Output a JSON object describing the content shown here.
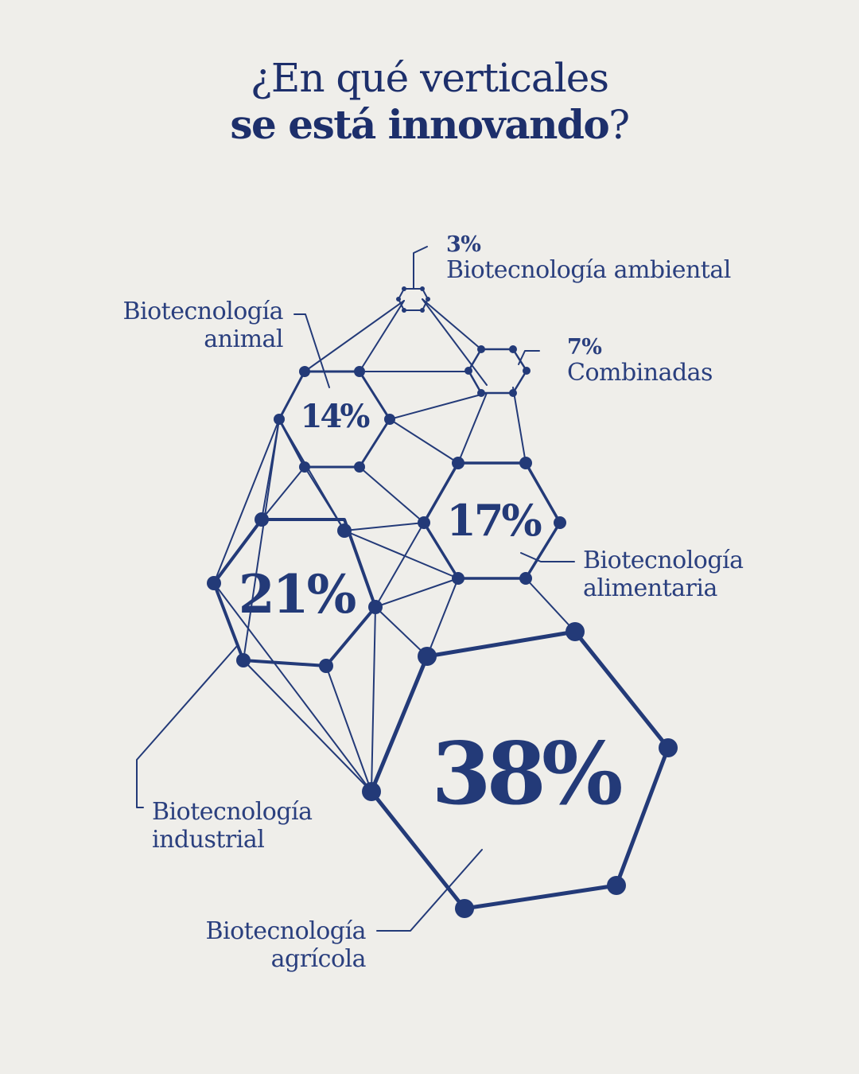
{
  "title": {
    "line1": "¿En qué verticales",
    "line2_bold": "se está innovando",
    "line2_rest": "?"
  },
  "segments": [
    {
      "id": "ambiental",
      "percent": "3%",
      "label1": "Biotecnología ambiental",
      "label2": ""
    },
    {
      "id": "combinadas",
      "percent": "7%",
      "label1": "Combinadas",
      "label2": ""
    },
    {
      "id": "animal",
      "percent": "14%",
      "label1": "Biotecnología",
      "label2": "animal"
    },
    {
      "id": "alimentaria",
      "percent": "17%",
      "label1": "Biotecnología",
      "label2": "alimentaria"
    },
    {
      "id": "industrial",
      "percent": "21%",
      "label1": "Biotecnología",
      "label2": "industrial"
    },
    {
      "id": "agricola",
      "percent": "38%",
      "label1": "Biotecnología",
      "label2": "agrícola"
    }
  ],
  "colors": {
    "ink": "#233a78",
    "background": "#efeeea"
  }
}
